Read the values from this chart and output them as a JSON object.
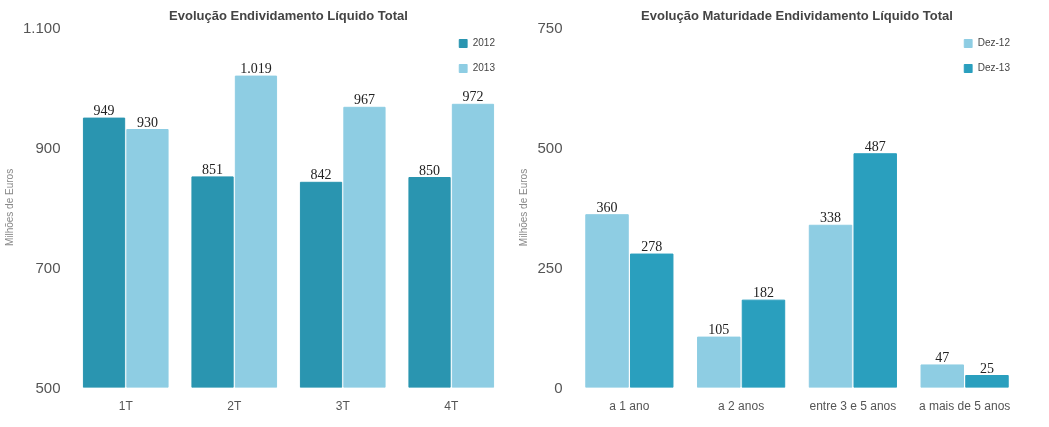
{
  "chart_data": [
    {
      "type": "bar",
      "title": "Evolução Endividamento Líquido Total",
      "ylabel": "Milhões de Euros",
      "categories": [
        "1T",
        "2T",
        "3T",
        "4T"
      ],
      "series": [
        {
          "name": "2012",
          "color": "#2a95b0",
          "values": [
            949,
            851,
            842,
            850
          ],
          "value_labels": [
            "949",
            "851",
            "842",
            "850"
          ]
        },
        {
          "name": "2013",
          "color": "#8ecde3",
          "values": [
            930,
            1019,
            967,
            972
          ],
          "value_labels": [
            "930",
            "1.019",
            "967",
            "972"
          ]
        }
      ],
      "ylim": [
        500,
        1100
      ],
      "yticks": [
        500,
        700,
        900,
        {
          "value": 1100,
          "label": "1.100"
        }
      ],
      "grid": false,
      "legend": "top right"
    },
    {
      "type": "bar",
      "title": "Evolução Maturidade Endividamento Líquido Total",
      "ylabel": "Milhões de Euros",
      "categories": [
        "a 1 ano",
        "a 2 anos",
        "entre 3 e 5 anos",
        "a mais de 5 anos"
      ],
      "series": [
        {
          "name": "Dez-12",
          "color": "#8ecde3",
          "values": [
            360,
            105,
            338,
            47
          ]
        },
        {
          "name": "Dez-13",
          "color": "#2a9fbe",
          "values": [
            278,
            182,
            487,
            25
          ]
        }
      ],
      "ylim": [
        0,
        750
      ],
      "yticks": [
        0,
        250,
        500,
        750
      ],
      "grid": false,
      "legend": "top right",
      "data_labels": true
    }
  ]
}
